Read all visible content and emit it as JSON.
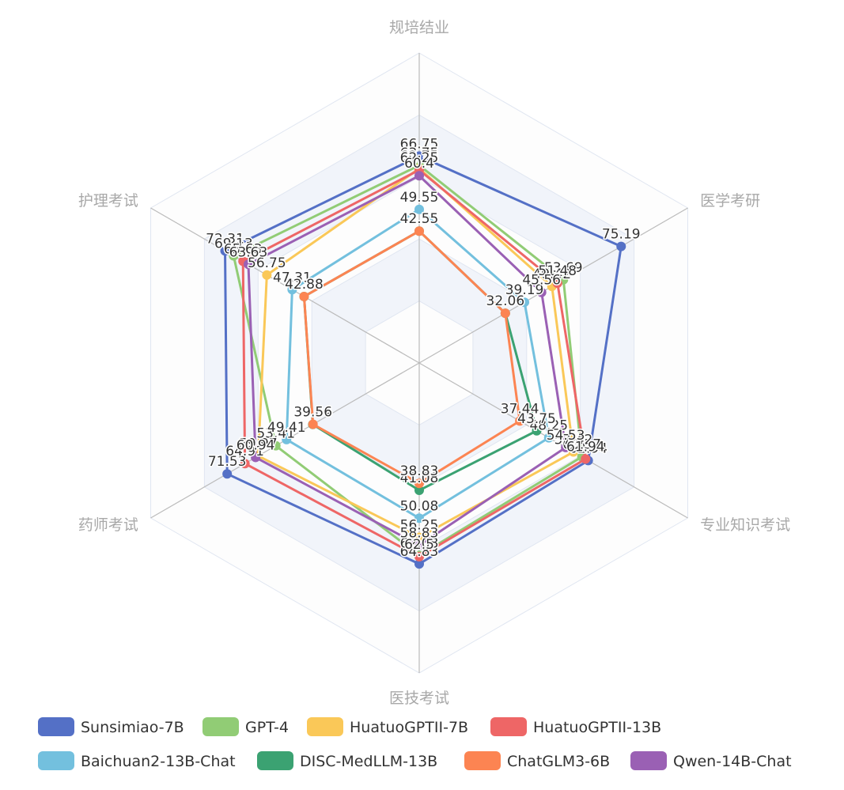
{
  "chart_data": {
    "type": "radar",
    "indicators": [
      "规培结业",
      "医学考研",
      "专业知识考试",
      "医技考试",
      "药师考试",
      "护理考试"
    ],
    "max": 100,
    "split_number": 5,
    "series": [
      {
        "name": "Sunsimiao-7B",
        "color": "#5470c6",
        "values": [
          66.75,
          75.19,
          62.94,
          64.83,
          71.53,
          72.31
        ]
      },
      {
        "name": "GPT-4",
        "color": "#91cc75",
        "values": [
          63.75,
          53.69,
          60.57,
          62.08,
          53.41,
          69.13
        ]
      },
      {
        "name": "HuatuoGPTII-7B",
        "color": "#fac858",
        "values": [
          62.75,
          49.42,
          57.42,
          56.25,
          59.97,
          56.75
        ]
      },
      {
        "name": "HuatuoGPTII-13B",
        "color": "#ee6666",
        "values": [
          62.25,
          51.48,
          61.94,
          62.5,
          64.91,
          65.63
        ]
      },
      {
        "name": "Baichuan2-13B-Chat",
        "color": "#73c0de",
        "values": [
          49.55,
          39.19,
          48.25,
          50.08,
          49.41,
          47.31
        ]
      },
      {
        "name": "DISC-MedLLM-13B",
        "color": "#3ba272",
        "values": [
          42.55,
          32.06,
          43.75,
          41.08,
          39.64,
          42.88
        ]
      },
      {
        "name": "ChatGLM3-6B",
        "color": "#fc8452",
        "values": [
          42.55,
          32.06,
          37.44,
          38.83,
          39.56,
          42.88
        ]
      },
      {
        "name": "Qwen-14B-Chat",
        "color": "#9a60b4",
        "values": [
          60.4,
          45.56,
          54.53,
          58.83,
          60.94,
          63.63
        ]
      }
    ],
    "legend_position": "bottom"
  }
}
